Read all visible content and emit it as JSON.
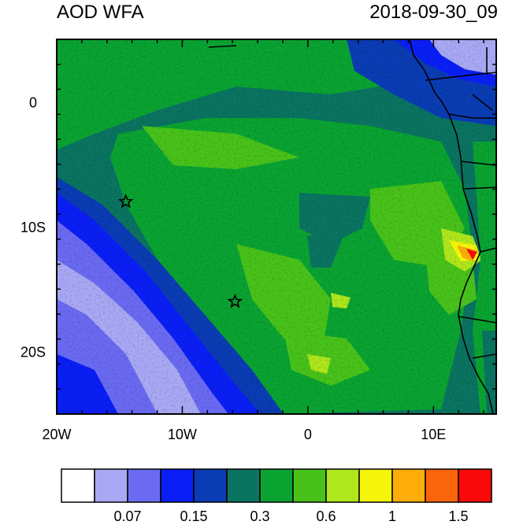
{
  "title": {
    "left": "AOD WFA",
    "right": "2018-09-30_09"
  },
  "map": {
    "lon_range": [
      -20,
      15
    ],
    "lat_range": [
      -25,
      5
    ],
    "x_ticks": [
      {
        "value": -20,
        "label": "20W"
      },
      {
        "value": -10,
        "label": "10W"
      },
      {
        "value": 0,
        "label": "0"
      },
      {
        "value": 10,
        "label": "10E"
      }
    ],
    "y_ticks": [
      {
        "value": 0,
        "label": "0"
      },
      {
        "value": -10,
        "label": "10S"
      },
      {
        "value": -20,
        "label": "20S"
      }
    ],
    "markers": [
      {
        "name": "star-marker",
        "lon": -14.5,
        "lat": -8
      },
      {
        "name": "star-marker",
        "lon": -5.8,
        "lat": -16
      }
    ]
  },
  "colorbar": {
    "colors": [
      "#ffffff",
      "#a8a8f5",
      "#6a6af2",
      "#0a1ff5",
      "#0a3cb4",
      "#0a7461",
      "#0aa332",
      "#48c21a",
      "#afe61c",
      "#f5f50a",
      "#fcad0a",
      "#fa640a",
      "#fa0a0a"
    ],
    "labels": [
      "0.07",
      "0.15",
      "0.3",
      "0.6",
      "1",
      "1.5"
    ]
  }
}
